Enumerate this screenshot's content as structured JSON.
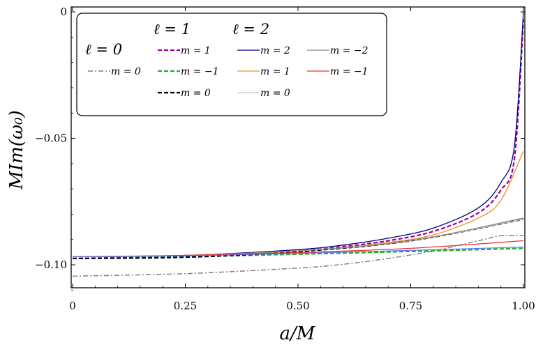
{
  "chart_data": {
    "type": "line",
    "title": "",
    "xlabel": "a/M",
    "ylabel": "MIm(ω₀)",
    "xlim": [
      0,
      1.0
    ],
    "ylim": [
      -0.11,
      0.0
    ],
    "x_ticks": [
      {
        "value": 0,
        "label": "0"
      },
      {
        "value": 0.25,
        "label": "0.25"
      },
      {
        "value": 0.5,
        "label": "0.50"
      },
      {
        "value": 0.75,
        "label": "0.75"
      },
      {
        "value": 1.0,
        "label": "1.00"
      }
    ],
    "y_ticks": [
      {
        "value": 0,
        "label": "0"
      },
      {
        "value": -0.05,
        "label": "−0.05"
      },
      {
        "value": -0.1,
        "label": "−0.10"
      }
    ],
    "legend_groups": [
      "ℓ = 0",
      "ℓ = 1",
      "ℓ = 2"
    ],
    "series": [
      {
        "name": "l0-m0",
        "group": "ℓ = 0",
        "label": "m = 0",
        "color": "#808080",
        "dash": "dashdot",
        "width": 1.5,
        "x": [
          0,
          0.25,
          0.5,
          0.6,
          0.7,
          0.8,
          0.9,
          0.95,
          1.0
        ],
        "y": [
          -0.1045,
          -0.1035,
          -0.1013,
          -0.0998,
          -0.0975,
          -0.0945,
          -0.0905,
          -0.0885,
          -0.0885
        ]
      },
      {
        "name": "l1-m1",
        "group": "ℓ = 1",
        "label": "m = 1",
        "color": "#990099",
        "dash": "dashed",
        "width": 2.2,
        "x": [
          0,
          0.25,
          0.5,
          0.6,
          0.7,
          0.8,
          0.9,
          0.95,
          0.98,
          1.0
        ],
        "y": [
          -0.0975,
          -0.0968,
          -0.0945,
          -0.0928,
          -0.0905,
          -0.0868,
          -0.0795,
          -0.0705,
          -0.058,
          -0.003
        ]
      },
      {
        "name": "l1-m-1",
        "group": "ℓ = 1",
        "label": "m = −1",
        "color": "#22aa22",
        "dash": "dashed",
        "width": 2.2,
        "x": [
          0,
          0.25,
          0.5,
          0.75,
          1.0
        ],
        "y": [
          -0.0975,
          -0.0968,
          -0.0958,
          -0.0947,
          -0.0935
        ]
      },
      {
        "name": "l1-m0",
        "group": "ℓ = 1",
        "label": "m = 0",
        "color": "#000000",
        "dash": "dashed",
        "width": 2.2,
        "x": [
          0,
          0.25,
          0.5,
          0.75,
          1.0
        ],
        "y": [
          -0.0975,
          -0.097,
          -0.0948,
          -0.0905,
          -0.082
        ]
      },
      {
        "name": "l2-m2",
        "group": "ℓ = 2",
        "label": "m = 2",
        "color": "#000080",
        "dash": "solid",
        "width": 1.3,
        "x": [
          0,
          0.25,
          0.5,
          0.6,
          0.7,
          0.8,
          0.9,
          0.95,
          0.98,
          1.0
        ],
        "y": [
          -0.0968,
          -0.0963,
          -0.094,
          -0.0922,
          -0.0895,
          -0.0855,
          -0.0775,
          -0.0675,
          -0.053,
          0.0
        ]
      },
      {
        "name": "l2-m1",
        "group": "ℓ = 2",
        "label": "m = 1",
        "color": "#f0901e",
        "dash": "solid",
        "width": 1.3,
        "x": [
          0,
          0.25,
          0.5,
          0.6,
          0.7,
          0.8,
          0.9,
          0.95,
          1.0
        ],
        "y": [
          -0.0968,
          -0.0963,
          -0.0945,
          -0.0932,
          -0.0912,
          -0.0882,
          -0.0815,
          -0.0745,
          -0.055
        ]
      },
      {
        "name": "l2-m0",
        "group": "ℓ = 2",
        "label": "m = 0",
        "color": "#c8c8c8",
        "dash": "solid",
        "width": 1.3,
        "x": [
          0,
          0.25,
          0.5,
          0.75,
          1.0
        ],
        "y": [
          -0.0968,
          -0.0963,
          -0.0945,
          -0.0905,
          -0.082
        ]
      },
      {
        "name": "l2-m-2",
        "group": "ℓ = 2",
        "label": "m = −2",
        "color": "#8a8a8a",
        "dash": "solid",
        "width": 1.3,
        "x": [
          0,
          0.25,
          0.5,
          0.75,
          1.0
        ],
        "y": [
          -0.0968,
          -0.0963,
          -0.0945,
          -0.0905,
          -0.0815
        ]
      },
      {
        "name": "l2-m-1",
        "group": "ℓ = 2",
        "label": "m = −1",
        "color": "#e83030",
        "dash": "solid",
        "width": 1.3,
        "x": [
          0,
          0.25,
          0.5,
          0.75,
          1.0
        ],
        "y": [
          -0.0968,
          -0.0963,
          -0.0952,
          -0.0935,
          -0.0905
        ]
      },
      {
        "name": "l2-blue",
        "group": "ℓ = 2",
        "label": "",
        "color": "#5577ff",
        "dash": "solid",
        "width": 1.1,
        "x": [
          0,
          0.25,
          0.5,
          0.75,
          1.0
        ],
        "y": [
          -0.0968,
          -0.0965,
          -0.0955,
          -0.0943,
          -0.093
        ]
      }
    ]
  }
}
